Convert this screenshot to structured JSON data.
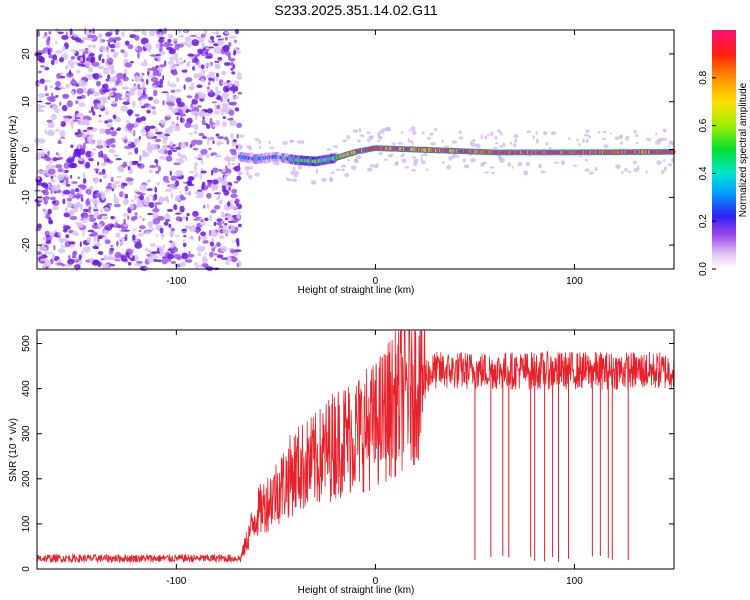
{
  "title": "S233.2025.351.14.02.G11",
  "colors": {
    "snr_line": "#e8202a",
    "scatter_purple": "#7a2de0",
    "axis": "#000000"
  },
  "chart_data": [
    {
      "type": "heatmap",
      "title": "S233.2025.351.14.02.G11",
      "xlabel": "Height of straight line (km)",
      "ylabel": "Frequency (Hz)",
      "xlim": [
        -170,
        150
      ],
      "ylim": [
        -25,
        25
      ],
      "xticks": [
        -100,
        0,
        100
      ],
      "yticks": [
        -20,
        -10,
        0,
        10,
        20
      ],
      "colorbar": {
        "label": "Normalized spectral amplitude",
        "range": [
          0,
          1
        ],
        "ticks": [
          0,
          0.2,
          0.4,
          0.6,
          0.8
        ]
      },
      "noise_region": {
        "x_from": -170,
        "x_to": -68,
        "amplitude": 0.15
      },
      "ridge": {
        "description": "dominant frequency ridge near 0 Hz",
        "x": [
          -68,
          -60,
          -50,
          -40,
          -30,
          -20,
          -10,
          0,
          20,
          60,
          100,
          150
        ],
        "frequency_hz": [
          -1.5,
          -2.0,
          -1.5,
          -2.2,
          -2.5,
          -1.8,
          -0.5,
          0.3,
          0.0,
          -0.6,
          -0.6,
          -0.5
        ],
        "amplitude": [
          0.2,
          0.25,
          0.2,
          0.4,
          0.6,
          0.55,
          0.85,
          0.95,
          0.8,
          0.95,
          0.9,
          0.9
        ]
      }
    },
    {
      "type": "line",
      "xlabel": "Height of straight line (km)",
      "ylabel": "SNR (10 * v/v)",
      "xlim": [
        -170,
        150
      ],
      "ylim": [
        0,
        530
      ],
      "xticks": [
        -100,
        0,
        100
      ],
      "yticks": [
        0,
        100,
        200,
        300,
        400,
        500
      ],
      "series": [
        {
          "name": "SNR",
          "x": [
            -170,
            -68,
            -60,
            -50,
            -40,
            -30,
            -20,
            -10,
            0,
            10,
            20,
            30,
            50,
            100,
            150
          ],
          "y": [
            20,
            20,
            120,
            170,
            220,
            240,
            280,
            300,
            320,
            370,
            420,
            440,
            440,
            440,
            440
          ],
          "dropouts_x": [
            50,
            58,
            64,
            67,
            78,
            80,
            85,
            89,
            92,
            97,
            109,
            113,
            117,
            119,
            127
          ]
        }
      ]
    }
  ]
}
